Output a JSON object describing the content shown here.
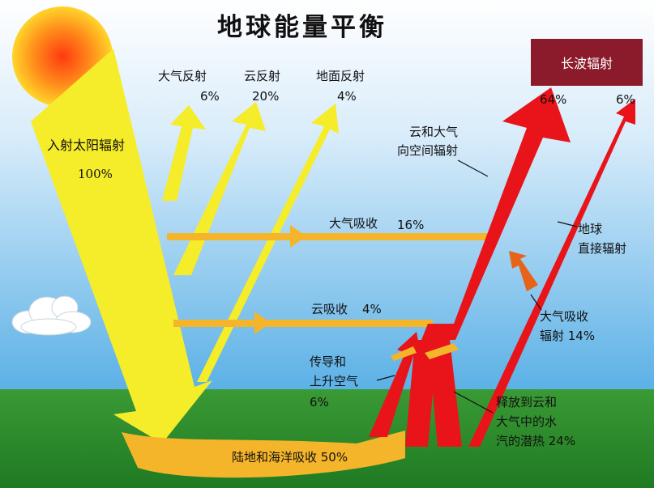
{
  "title": "地球能量平衡",
  "longwave_box": "长波辐射",
  "incoming": {
    "label": "入射太阳辐射",
    "value": "100%"
  },
  "reflection": {
    "atmosphere": {
      "label": "大气反射",
      "value": "6%"
    },
    "cloud": {
      "label": "云反射",
      "value": "20%"
    },
    "surface": {
      "label": "地面反射",
      "value": "4%"
    }
  },
  "outgoing": {
    "total": "64%",
    "direct": "6%"
  },
  "cloud_atm_space": {
    "line1": "云和大气",
    "line2": "向空间辐射"
  },
  "atm_absorb": {
    "label": "大气吸收",
    "value": "16%"
  },
  "cloud_absorb": {
    "label": "云吸收",
    "value": "4%"
  },
  "earth_direct": {
    "line1": "地球",
    "line2": "直接辐射"
  },
  "atm_absorb_rad": {
    "line1": "大气吸收",
    "line2": "辐射 14%"
  },
  "conduction": {
    "line1": "传导和",
    "line2": "上升空气",
    "value": "6%"
  },
  "latent": {
    "line1": "释放到云和",
    "line2": "大气中的水",
    "line3": "汽的潜热  24%"
  },
  "surface_absorb": "陆地和海洋吸收 50%",
  "colors": {
    "sky": "#5ab0e6",
    "ground": "#2e8b2e",
    "yellow": "#f5ec2a",
    "orange": "#f5b52a",
    "red": "#e8141a",
    "box": "#8b1a2a"
  }
}
